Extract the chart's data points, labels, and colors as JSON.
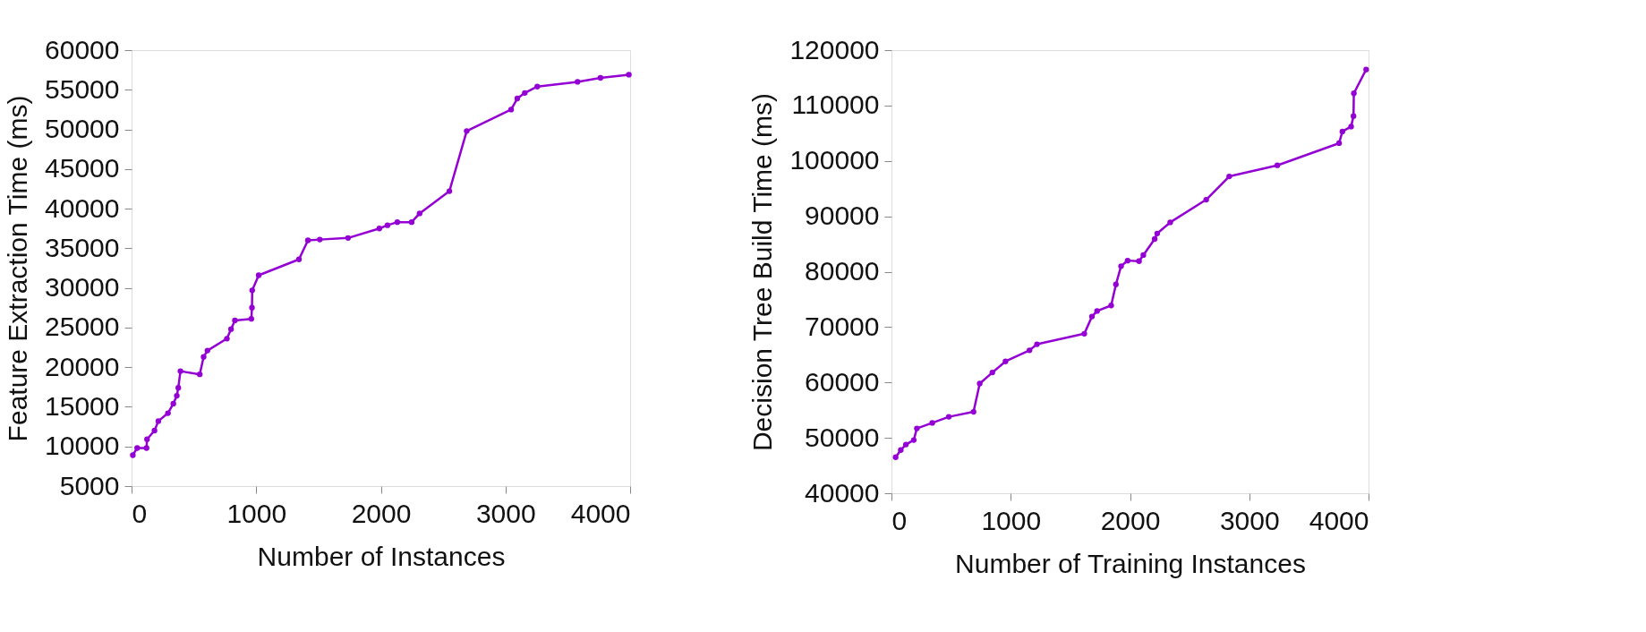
{
  "chart_data": [
    {
      "type": "line",
      "xlabel": "Number of Instances",
      "ylabel": "Feature Extraction Time (ms)",
      "marker": "circle",
      "grid": false,
      "xlim": [
        0,
        4000
      ],
      "xticks": [
        0,
        1000,
        2000,
        3000,
        4000
      ],
      "ylim": [
        5000,
        60000
      ],
      "yticks": [
        5000,
        10000,
        15000,
        20000,
        25000,
        30000,
        35000,
        40000,
        45000,
        50000,
        55000,
        60000
      ],
      "series": [
        {
          "color": "#9400d3",
          "x": [
            10,
            45,
            120,
            124,
            184,
            215,
            292,
            335,
            363,
            375,
            392,
            547,
            578,
            609,
            765,
            798,
            829,
            961,
            966,
            968,
            1020,
            1343,
            1415,
            1510,
            1737,
            1988,
            2053,
            2132,
            2247,
            2311,
            2550,
            2689,
            3045,
            3095,
            3155,
            3255,
            3578,
            3762,
            3990
          ],
          "values": [
            8900,
            9800,
            9800,
            10900,
            12000,
            13200,
            14200,
            15400,
            16400,
            17400,
            19500,
            19100,
            21300,
            22100,
            23600,
            24800,
            25900,
            26100,
            27500,
            29700,
            31600,
            33600,
            36000,
            36100,
            36300,
            37500,
            37900,
            38300,
            38300,
            39400,
            42200,
            49800,
            52500,
            53900,
            54600,
            55400,
            56000,
            56500,
            56900
          ]
        }
      ]
    },
    {
      "type": "line",
      "xlabel": "Number of Training Instances",
      "ylabel": "Decision Tree Build Time (ms)",
      "marker": "circle",
      "grid": false,
      "xlim": [
        0,
        4000
      ],
      "xticks": [
        0,
        1000,
        2000,
        3000,
        4000
      ],
      "ylim": [
        40000,
        120000
      ],
      "yticks": [
        40000,
        50000,
        60000,
        70000,
        80000,
        90000,
        100000,
        110000,
        120000
      ],
      "series": [
        {
          "color": "#9400d3",
          "x": [
            35,
            78,
            121,
            187,
            213,
            342,
            481,
            688,
            740,
            846,
            956,
            1157,
            1220,
            1617,
            1681,
            1724,
            1842,
            1882,
            1925,
            1980,
            2076,
            2112,
            2207,
            2228,
            2337,
            2639,
            2832,
            3235,
            3753,
            3781,
            3854,
            3874,
            3877,
            3980
          ],
          "values": [
            46500,
            47800,
            48800,
            49600,
            51700,
            52700,
            53800,
            54700,
            59800,
            61800,
            63800,
            65800,
            66900,
            68800,
            71900,
            72900,
            73900,
            77700,
            81000,
            82000,
            81900,
            83000,
            85900,
            86900,
            88900,
            93000,
            97200,
            99200,
            103200,
            105300,
            106200,
            108100,
            112200,
            116500
          ]
        }
      ]
    }
  ]
}
